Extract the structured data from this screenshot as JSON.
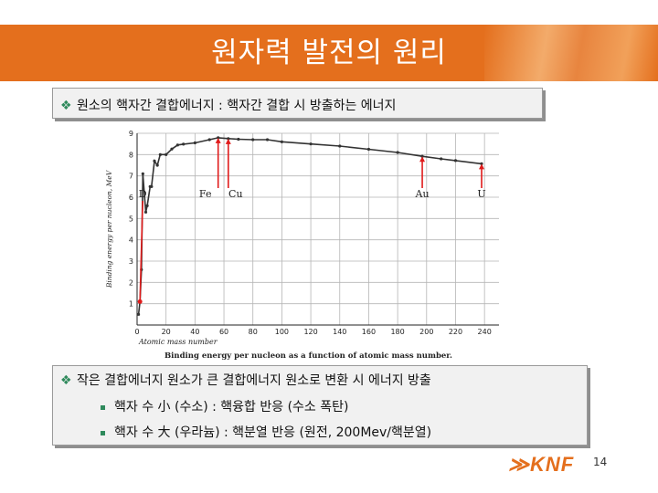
{
  "slide": {
    "title": "원자력 발전의 원리",
    "bullet1": "원소의 핵자간 결합에너지 : 핵자간 결합 시 방출하는 에너지",
    "bullet2": "작은 결합에너지 원소가 큰 결합에너지 원소로 변환 시 에너지 방출",
    "sub1": "핵자 수 小 (수소) : 핵융합 반응 (수소 폭탄)",
    "sub2": "핵자 수 大 (우라늄) : 핵분열 반응 (원전, 200Mev/핵분열)",
    "logo": "KNF",
    "page": "14",
    "bullet_symbol": "❖",
    "accent": "#e46f1d"
  },
  "chart_data": {
    "type": "line",
    "ylabel": "Binding energy per nucleon, MeV",
    "xlabel": "Atomic mass number",
    "caption": "Binding energy per nucleon as a function of atomic mass number.",
    "xlim": [
      0,
      250
    ],
    "ylim": [
      0,
      9
    ],
    "xticks": [
      0,
      20,
      40,
      60,
      80,
      100,
      120,
      140,
      160,
      180,
      200,
      220,
      240
    ],
    "yticks": [
      1,
      2,
      3,
      4,
      5,
      6,
      7,
      8,
      9
    ],
    "x": [
      1,
      2,
      3,
      4,
      6,
      7,
      9,
      10,
      12,
      14,
      16,
      20,
      24,
      28,
      32,
      40,
      50,
      56,
      63,
      70,
      80,
      90,
      100,
      120,
      140,
      160,
      180,
      197,
      210,
      220,
      238
    ],
    "y": [
      0.5,
      1.1,
      2.6,
      7.1,
      5.3,
      5.6,
      6.5,
      6.5,
      7.7,
      7.5,
      8.0,
      8.0,
      8.26,
      8.45,
      8.49,
      8.55,
      8.7,
      8.79,
      8.75,
      8.72,
      8.7,
      8.7,
      8.6,
      8.5,
      8.4,
      8.25,
      8.1,
      7.92,
      7.8,
      7.72,
      7.57
    ],
    "annotations": [
      {
        "label": "D",
        "x": 2,
        "y": 1.1
      },
      {
        "label": "Fe",
        "x": 56,
        "y": 8.79
      },
      {
        "label": "Cu",
        "x": 63,
        "y": 8.75
      },
      {
        "label": "Au",
        "x": 197,
        "y": 7.92
      },
      {
        "label": "U",
        "x": 238,
        "y": 7.57
      }
    ],
    "colors": {
      "curve": "#333333",
      "arrow": "#e01b1b"
    }
  }
}
